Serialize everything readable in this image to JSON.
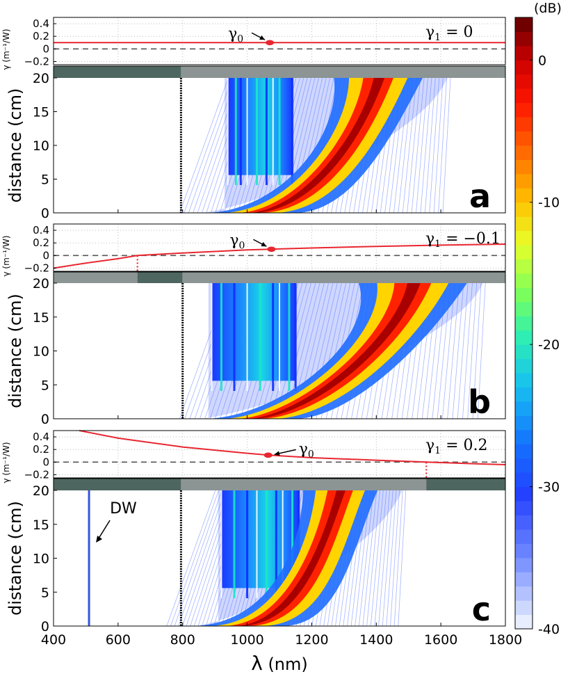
{
  "chart_data": [
    {
      "id": "a",
      "type": "heatmap",
      "panel_label": "a",
      "gamma_series": {
        "name": "γ",
        "gamma0": 0.1,
        "gamma1": 0,
        "points": [
          [
            400,
            0.1
          ],
          [
            600,
            0.1
          ],
          [
            800,
            0.1
          ],
          [
            1000,
            0.1
          ],
          [
            1200,
            0.1
          ],
          [
            1400,
            0.1
          ],
          [
            1600,
            0.1
          ],
          [
            1800,
            0.1
          ]
        ]
      },
      "gamma0_marker": {
        "x": 1070,
        "y": 0.1
      },
      "gamma_label": "γ",
      "gamma0_sub": "0",
      "gamma1_text": "γ",
      "gamma1_sub": "1",
      "gamma1_value": " = 0",
      "zero_crossings": [],
      "pump_line_x": 795,
      "bar_segments": [
        {
          "from": 400,
          "to": 795,
          "color": "#4e6660"
        },
        {
          "from": 795,
          "to": 1800,
          "color": "#8c9494"
        }
      ],
      "spectrum": {
        "plateau_lines": [
          940,
          965,
          980,
          1000,
          1030,
          1060,
          1080,
          1100,
          1140
        ],
        "onset_start_nm": 860,
        "ridge_start_nm": 920,
        "ridge_end_nm": 1420,
        "outer_edge_end_nm": 1620
      }
    },
    {
      "id": "b",
      "type": "heatmap",
      "panel_label": "b",
      "gamma_series": {
        "name": "γ",
        "gamma0": 0.1,
        "gamma1": -0.1,
        "points": [
          [
            400,
            -0.2
          ],
          [
            500,
            -0.12
          ],
          [
            600,
            -0.05
          ],
          [
            660,
            0
          ],
          [
            800,
            0.04
          ],
          [
            1000,
            0.09
          ],
          [
            1070,
            0.1
          ],
          [
            1200,
            0.12
          ],
          [
            1400,
            0.145
          ],
          [
            1600,
            0.165
          ],
          [
            1800,
            0.18
          ]
        ]
      },
      "gamma0_marker": {
        "x": 1075,
        "y": 0.1
      },
      "gamma_label": "γ",
      "gamma0_sub": "0",
      "gamma1_text": "γ",
      "gamma1_sub": "1",
      "gamma1_value": " = −0.1",
      "zero_crossings": [
        660
      ],
      "pump_line_x": 800,
      "bar_segments": [
        {
          "from": 400,
          "to": 660,
          "color": "#8c9494"
        },
        {
          "from": 660,
          "to": 800,
          "color": "#4e6660"
        },
        {
          "from": 800,
          "to": 1800,
          "color": "#8c9494"
        }
      ],
      "spectrum": {
        "plateau_lines": [
          890,
          920,
          960,
          1000,
          1040,
          1080,
          1100,
          1130,
          1150
        ],
        "onset_start_nm": 860,
        "ridge_start_nm": 920,
        "ridge_end_nm": 1530,
        "outer_edge_end_nm": 1730
      }
    },
    {
      "id": "c",
      "type": "heatmap",
      "panel_label": "c",
      "gamma_series": {
        "name": "γ",
        "gamma0": 0.1,
        "gamma1": 0.2,
        "points": [
          [
            480,
            0.5
          ],
          [
            600,
            0.38
          ],
          [
            800,
            0.24
          ],
          [
            1000,
            0.14
          ],
          [
            1070,
            0.11
          ],
          [
            1200,
            0.07
          ],
          [
            1400,
            0.03
          ],
          [
            1555,
            0
          ],
          [
            1700,
            -0.025
          ],
          [
            1800,
            -0.04
          ]
        ]
      },
      "gamma0_marker": {
        "x": 1065,
        "y": 0.11
      },
      "gamma_label": "γ",
      "gamma0_sub": "0",
      "gamma1_text": "γ",
      "gamma1_sub": "1",
      "gamma1_value": " = 0.2",
      "zero_crossings": [
        1555
      ],
      "pump_line_x": 795,
      "dispersive_wave_x": 510,
      "dispersive_wave_label": "DW",
      "bar_segments": [
        {
          "from": 400,
          "to": 795,
          "color": "#4e6660"
        },
        {
          "from": 795,
          "to": 1555,
          "color": "#8c9494"
        },
        {
          "from": 1555,
          "to": 1800,
          "color": "#4e6660"
        }
      ],
      "spectrum": {
        "plateau_lines": [
          920,
          960,
          1000,
          1030,
          1060,
          1090,
          1110,
          1140,
          1160
        ],
        "onset_start_nm": 840,
        "ridge_start_nm": 880,
        "ridge_end_nm": 1300,
        "outer_edge_end_nm": 1480
      }
    }
  ],
  "axes": {
    "x_label_lambda": "λ",
    "x_label_unit": " (nm)",
    "x_range": [
      400,
      1800
    ],
    "x_ticks": [
      "400",
      "600",
      "800",
      "1000",
      "1200",
      "1400",
      "1600",
      "1800"
    ],
    "x_tick_values": [
      400,
      600,
      800,
      1000,
      1200,
      1400,
      1600,
      1800
    ],
    "distance_label": "distance (cm)",
    "distance_range": [
      0,
      20
    ],
    "distance_ticks": [
      "0",
      "5",
      "10",
      "15",
      "20"
    ],
    "distance_tick_values": [
      0,
      5,
      10,
      15,
      20
    ],
    "gamma_axis_label": "γ (m⁻¹/W)",
    "gamma_range": [
      -0.25,
      0.5
    ],
    "gamma_ticks": [
      "0.4",
      "0.2",
      "0",
      "−0.2"
    ],
    "gamma_tick_values": [
      0.4,
      0.2,
      0,
      -0.2
    ]
  },
  "colorbar": {
    "unit": "(dB)",
    "range": [
      -40,
      3
    ],
    "ticks": [
      "0",
      "-10",
      "-20",
      "-30",
      "-40"
    ],
    "tick_values": [
      0,
      -10,
      -20,
      -30,
      -40
    ]
  },
  "colors": {
    "gamma_line": "#e8262f",
    "zero_line": "#555555",
    "pump_line": "#000000",
    "crossing_line": "#e8262f",
    "dw_line": "#3355dd"
  }
}
